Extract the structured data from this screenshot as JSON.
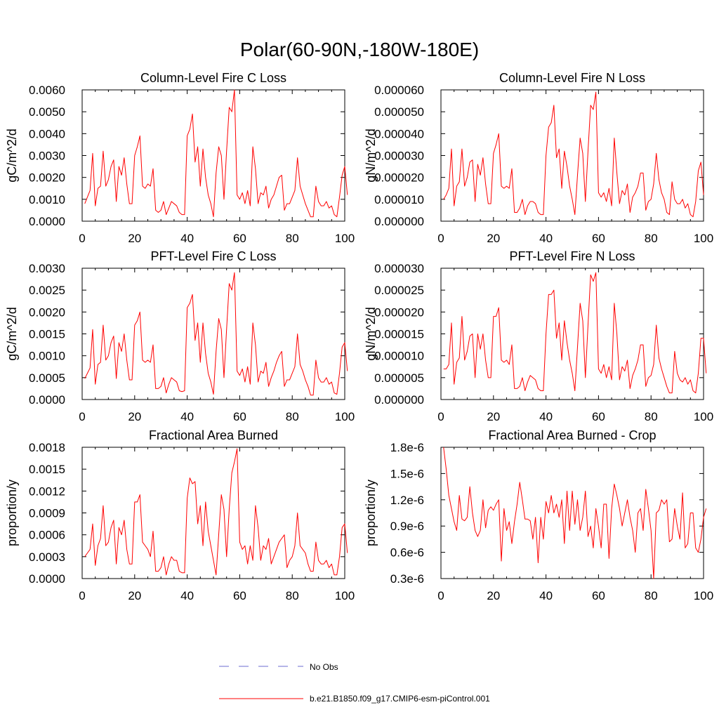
{
  "figure": {
    "title": "Polar(60-90N,-180W-180E)",
    "legend": [
      {
        "label": "No Obs",
        "color": "#6b6bd1",
        "style": "dashed"
      },
      {
        "label": "b.e21.B1850.f09_g17.CMIP6-esm-piControl.001",
        "color": "#ff0000",
        "style": "solid"
      }
    ]
  },
  "chart_data": [
    {
      "type": "line",
      "title": "Column-Level Fire C Loss",
      "ylabel": "gC/m^2/d",
      "xlim": [
        0,
        100
      ],
      "ylim": [
        0,
        0.006
      ],
      "xticks": [
        0,
        20,
        40,
        60,
        80,
        100
      ],
      "xtick_labels": [
        "0",
        "20",
        "40",
        "60",
        "80",
        "100"
      ],
      "yticks": [
        0,
        0.001,
        0.002,
        0.003,
        0.004,
        0.005,
        0.006
      ],
      "ytick_labels": [
        "0.0000",
        "0.0010",
        "0.0020",
        "0.0030",
        "0.0040",
        "0.0050",
        "0.0060"
      ],
      "series": [
        {
          "color": "#ff0000",
          "values": [
            0.0008,
            0.0011,
            0.0014,
            0.0031,
            0.0007,
            0.0015,
            0.0016,
            0.0032,
            0.0016,
            0.0019,
            0.0025,
            0.0028,
            0.0009,
            0.0025,
            0.0021,
            0.0029,
            0.0017,
            0.0008,
            0.0008,
            0.003,
            0.0034,
            0.0039,
            0.0016,
            0.0015,
            0.0017,
            0.0016,
            0.0024,
            0.0005,
            0.0004,
            0.0005,
            0.0009,
            0.0003,
            0.0006,
            0.0009,
            0.0008,
            0.0007,
            0.0004,
            0.0003,
            0.0003,
            0.0039,
            0.0042,
            0.0049,
            0.0027,
            0.0034,
            0.0016,
            0.0033,
            0.002,
            0.0012,
            0.0008,
            0.0002,
            0.0022,
            0.0034,
            0.003,
            0.001,
            0.0032,
            0.0052,
            0.005,
            0.006,
            0.0012,
            0.001,
            0.0013,
            0.0008,
            0.0014,
            0.0007,
            0.0034,
            0.0024,
            0.0008,
            0.0013,
            0.0012,
            0.0016,
            0.0006,
            0.001,
            0.0012,
            0.0016,
            0.002,
            0.0021,
            0.0005,
            0.0008,
            0.0008,
            0.0011,
            0.0014,
            0.0029,
            0.0016,
            0.0012,
            0.0008,
            0.0005,
            0.0002,
            0.0002,
            0.0016,
            0.0009,
            0.0007,
            0.0007,
            0.0009,
            0.0006,
            0.0007,
            0.0003,
            0.0002,
            0.0011,
            0.0021,
            0.0025,
            0.0012
          ]
        }
      ]
    },
    {
      "type": "line",
      "title": "Column-Level Fire N Loss",
      "ylabel": "gN/m^2/d",
      "xlim": [
        0,
        100
      ],
      "ylim": [
        0,
        6e-05
      ],
      "xticks": [
        0,
        20,
        40,
        60,
        80,
        100
      ],
      "xtick_labels": [
        "0",
        "20",
        "40",
        "60",
        "80",
        "100"
      ],
      "yticks": [
        0,
        1e-05,
        2e-05,
        3e-05,
        4e-05,
        5e-05,
        6e-05
      ],
      "ytick_labels": [
        "0.000000",
        "0.000010",
        "0.000020",
        "0.000030",
        "0.000040",
        "0.000050",
        "0.000060"
      ],
      "series": [
        {
          "color": "#ff0000",
          "values": [
            1e-05,
            1.2e-05,
            1.5e-05,
            3.3e-05,
            7e-06,
            1.6e-05,
            1.8e-05,
            3.3e-05,
            1.6e-05,
            2e-05,
            2.7e-05,
            2.8e-05,
            9e-06,
            2.6e-05,
            2.1e-05,
            2.9e-05,
            1.7e-05,
            8e-06,
            8e-06,
            3.1e-05,
            3.5e-05,
            4e-05,
            1.6e-05,
            1.5e-05,
            1.6e-05,
            1.5e-05,
            2.4e-05,
            4e-06,
            4e-06,
            6e-06,
            1e-05,
            3e-06,
            7e-06,
            9e-06,
            9e-06,
            8e-06,
            4e-06,
            3e-06,
            3e-06,
            3e-05,
            4.3e-05,
            4.5e-05,
            5.3e-05,
            2.9e-05,
            3.3e-05,
            1.5e-05,
            3.2e-05,
            2.5e-05,
            1.6e-05,
            1e-05,
            3e-06,
            2.1e-05,
            3.8e-05,
            3.1e-05,
            9e-06,
            3.2e-05,
            5.3e-05,
            5.1e-05,
            5.9e-05,
            1.3e-05,
            1.1e-05,
            1.3e-05,
            9e-06,
            1.5e-05,
            7e-06,
            3.8e-05,
            2.2e-05,
            8e-06,
            1.4e-05,
            1.2e-05,
            1.7e-05,
            4e-06,
            1.1e-05,
            1.3e-05,
            1.6e-05,
            2.2e-05,
            2.2e-05,
            5e-06,
            9e-06,
            1e-05,
            1.7e-05,
            3.1e-05,
            1.9e-05,
            1.3e-05,
            1e-05,
            4e-06,
            3e-06,
            1.8e-05,
            1e-05,
            8e-06,
            8e-06,
            1e-05,
            6e-06,
            8e-06,
            3e-06,
            2e-06,
            9e-06,
            2.3e-05,
            2.7e-05,
            1.2e-05
          ]
        }
      ]
    },
    {
      "type": "line",
      "title": "PFT-Level Fire C Loss",
      "ylabel": "gC/m^2/d",
      "xlim": [
        0,
        100
      ],
      "ylim": [
        0,
        0.003
      ],
      "xticks": [
        0,
        20,
        40,
        60,
        80,
        100
      ],
      "xtick_labels": [
        "0",
        "20",
        "40",
        "60",
        "80",
        "100"
      ],
      "yticks": [
        0,
        0.0005,
        0.001,
        0.0015,
        0.002,
        0.0025,
        0.003
      ],
      "ytick_labels": [
        "0.0000",
        "0.0005",
        "0.0010",
        "0.0015",
        "0.0020",
        "0.0025",
        "0.0030"
      ],
      "series": [
        {
          "color": "#ff0000",
          "values": [
            0.00048,
            0.0006,
            0.00072,
            0.0016,
            0.00035,
            0.0008,
            0.00085,
            0.0017,
            0.0009,
            0.001,
            0.0013,
            0.00145,
            0.00048,
            0.0013,
            0.0011,
            0.0015,
            0.0009,
            0.00045,
            0.00045,
            0.0017,
            0.0018,
            0.002,
            0.0009,
            0.00085,
            0.0009,
            0.00085,
            0.00125,
            0.00025,
            0.00025,
            0.0003,
            0.0005,
            0.00015,
            0.00035,
            0.0005,
            0.00045,
            0.0004,
            0.0002,
            0.00018,
            0.0002,
            0.0021,
            0.0022,
            0.0024,
            0.00135,
            0.00175,
            0.00085,
            0.00175,
            0.00105,
            0.0006,
            0.0004,
            0.00012,
            0.0011,
            0.00185,
            0.0016,
            0.0005,
            0.0016,
            0.00265,
            0.0025,
            0.0029,
            0.00065,
            0.00055,
            0.0007,
            0.0004,
            0.00075,
            0.00035,
            0.00175,
            0.00125,
            0.0004,
            0.00065,
            0.0006,
            0.00085,
            0.0003,
            0.0005,
            0.00065,
            0.00085,
            0.001,
            0.0011,
            0.0003,
            0.00045,
            0.00045,
            0.0006,
            0.00075,
            0.0015,
            0.0008,
            0.00065,
            0.00045,
            0.0003,
            0.0001,
            0.0001,
            0.0009,
            0.0005,
            0.0004,
            0.0004,
            0.0005,
            0.00035,
            0.0004,
            0.00015,
            0.00012,
            0.0006,
            0.0012,
            0.0013,
            0.00065
          ]
        }
      ]
    },
    {
      "type": "line",
      "title": "PFT-Level Fire N Loss",
      "ylabel": "gN/m^2/d",
      "xlim": [
        0,
        100
      ],
      "ylim": [
        0,
        3e-05
      ],
      "xticks": [
        0,
        20,
        40,
        60,
        80,
        100
      ],
      "xtick_labels": [
        "0",
        "20",
        "40",
        "60",
        "80",
        "100"
      ],
      "yticks": [
        0,
        5e-06,
        1e-05,
        1.5e-05,
        2e-05,
        2.5e-05,
        3e-05
      ],
      "ytick_labels": [
        "0.000000",
        "0.000005",
        "0.000010",
        "0.000015",
        "0.000020",
        "0.000025",
        "0.000030"
      ],
      "series": [
        {
          "color": "#ff0000",
          "values": [
            7e-06,
            7e-06,
            8e-06,
            1.75e-05,
            3.5e-06,
            8.5e-06,
            9.5e-06,
            1.9e-05,
            9e-06,
            1.1e-05,
            1.45e-05,
            1.5e-05,
            5e-06,
            1.5e-05,
            1.15e-05,
            1.5e-05,
            9e-06,
            5e-06,
            5e-06,
            1.9e-05,
            1.9e-05,
            2.1e-05,
            9e-06,
            8.5e-06,
            9e-06,
            8e-06,
            1.25e-05,
            2.5e-06,
            2.5e-06,
            3e-06,
            5e-06,
            2e-06,
            4e-06,
            5.5e-06,
            5e-06,
            4.5e-06,
            2.5e-06,
            2e-06,
            2e-06,
            1.5e-05,
            2.4e-05,
            2.4e-05,
            2.5e-05,
            1.4e-05,
            1.75e-05,
            9e-06,
            1.8e-05,
            1.3e-05,
            9e-06,
            6e-06,
            2e-06,
            1.2e-05,
            2.2e-05,
            1.8e-05,
            5e-06,
            1.7e-05,
            2.85e-05,
            2.7e-05,
            2.9e-05,
            7e-06,
            6e-06,
            8e-06,
            5e-06,
            7.5e-06,
            4.5e-06,
            2.2e-05,
            1.5e-05,
            4.5e-06,
            7.5e-06,
            6.5e-06,
            9e-06,
            2.5e-06,
            5.5e-06,
            7e-06,
            9e-06,
            1.25e-05,
            1.25e-05,
            3e-06,
            5e-06,
            5.5e-06,
            8e-06,
            1.7e-05,
            9.5e-06,
            7e-06,
            5e-06,
            3e-06,
            1.5e-06,
            1.5e-06,
            1.1e-05,
            6e-06,
            4.5e-06,
            4e-06,
            5e-06,
            3.5e-06,
            4.5e-06,
            2e-06,
            1.5e-06,
            6e-06,
            1.4e-05,
            1.4e-05,
            6e-06
          ]
        }
      ]
    },
    {
      "type": "line",
      "title": "Fractional Area Burned",
      "ylabel": "proportion/y",
      "xlim": [
        0,
        100
      ],
      "ylim": [
        0,
        0.0018
      ],
      "xticks": [
        0,
        20,
        40,
        60,
        80,
        100
      ],
      "xtick_labels": [
        "0",
        "20",
        "40",
        "60",
        "80",
        "100"
      ],
      "yticks": [
        0,
        0.0003,
        0.0006,
        0.0009,
        0.0012,
        0.0015,
        0.0018
      ],
      "ytick_labels": [
        "0.0000",
        "0.0003",
        "0.0006",
        "0.0009",
        "0.0012",
        "0.0015",
        "0.0018"
      ],
      "series": [
        {
          "color": "#ff0000",
          "values": [
            0.0003,
            0.00035,
            0.0004,
            0.00075,
            0.00018,
            0.00045,
            0.00055,
            0.001,
            0.00045,
            0.0005,
            0.0007,
            0.0008,
            0.0002,
            0.0007,
            0.0006,
            0.0008,
            0.0004,
            0.0002,
            0.0002,
            0.00105,
            0.00105,
            0.00115,
            0.0005,
            0.00045,
            0.0004,
            0.0003,
            0.00065,
            0.0001,
            0.0001,
            0.00015,
            0.0003,
            5e-05,
            0.0002,
            0.0003,
            0.00025,
            0.00025,
            0.0001,
            8e-05,
            8e-05,
            0.0011,
            0.00138,
            0.0013,
            0.00133,
            0.00075,
            0.001,
            0.00045,
            0.00105,
            0.00065,
            0.00045,
            0.00025,
            5e-05,
            0.0006,
            0.00115,
            0.00095,
            0.0003,
            0.00095,
            0.00145,
            0.0016,
            0.00178,
            0.0005,
            0.0004,
            0.00045,
            0.0002,
            0.00045,
            0.00025,
            0.001,
            0.0007,
            0.00025,
            0.00045,
            0.0004,
            0.00055,
            0.0002,
            0.0003,
            0.0004,
            0.0005,
            0.00055,
            0.0006,
            0.00015,
            0.00025,
            0.0003,
            0.00045,
            0.0009,
            0.00045,
            0.0004,
            0.00035,
            0.0002,
            0.0001,
            0.0001,
            0.0005,
            0.00025,
            0.0002,
            0.0002,
            0.00025,
            0.00015,
            0.0002,
            5e-05,
            5e-05,
            0.0003,
            0.0007,
            0.00075,
            0.00035
          ]
        }
      ]
    },
    {
      "type": "line",
      "title": "Fractional Area Burned - Crop",
      "ylabel": "proportion/y",
      "xlim": [
        0,
        100
      ],
      "ylim": [
        3e-07,
        1.8e-06
      ],
      "xticks": [
        0,
        20,
        40,
        60,
        80,
        100
      ],
      "xtick_labels": [
        "0",
        "20",
        "40",
        "60",
        "80",
        "100"
      ],
      "yticks": [
        3e-07,
        6e-07,
        9e-07,
        1.2e-06,
        1.5e-06,
        1.8e-06
      ],
      "ytick_labels": [
        "0.3e-6",
        "0.6e-6",
        "0.9e-6",
        "1.2e-6",
        "1.5e-6",
        "1.8e-6"
      ],
      "series": [
        {
          "color": "#ff0000",
          "values": [
            1.8e-06,
            1.55e-06,
            1.25e-06,
            1.1e-06,
            9.5e-07,
            8.5e-07,
            1.25e-06,
            9.8e-07,
            9.6e-07,
            1e-06,
            1.35e-06,
            1.05e-06,
            8.5e-07,
            7.8e-07,
            8.5e-07,
            1.2e-06,
            8.8e-07,
            1.08e-06,
            1.12e-06,
            1.08e-06,
            1.15e-06,
            1.2e-06,
            5e-07,
            1.1e-06,
            8.5e-07,
            9.5e-07,
            7e-07,
            9.5e-07,
            1.15e-06,
            1.4e-06,
            1.2e-06,
            9.8e-07,
            9.8e-07,
            9.6e-07,
            7.5e-07,
            1e-06,
            4.8e-07,
            1e-06,
            7.5e-07,
            1.18e-06,
            1.05e-06,
            1.25e-06,
            1.05e-06,
            1.15e-06,
            1e-06,
            1.2e-06,
            7e-07,
            1.3e-06,
            8.5e-07,
            1.3e-06,
            9.2e-07,
            1.2e-06,
            8.5e-07,
            1e-06,
            1.3e-06,
            7.8e-07,
            9e-07,
            6.5e-07,
            1.1e-06,
            9e-07,
            6.5e-07,
            1.15e-06,
            1.15e-06,
            5.3e-07,
            1.1e-06,
            1.38e-06,
            1.25e-06,
            1.1e-06,
            9e-07,
            1.05e-06,
            1.2e-06,
            1e-06,
            8.5e-07,
            6e-07,
            1.05e-06,
            1.1e-06,
            8.5e-07,
            1.32e-06,
            1.1e-06,
            8.5e-07,
            3e-07,
            1.05e-06,
            1.08e-06,
            1.2e-06,
            1.15e-06,
            1.2e-06,
            7.2e-07,
            7.5e-07,
            1.1e-06,
            9e-07,
            7.5e-07,
            1.28e-06,
            6.5e-07,
            7e-07,
            1.05e-06,
            1.05e-06,
            6.5e-07,
            6e-07,
            7.5e-07,
            1e-06,
            1.1e-06
          ]
        }
      ]
    }
  ]
}
